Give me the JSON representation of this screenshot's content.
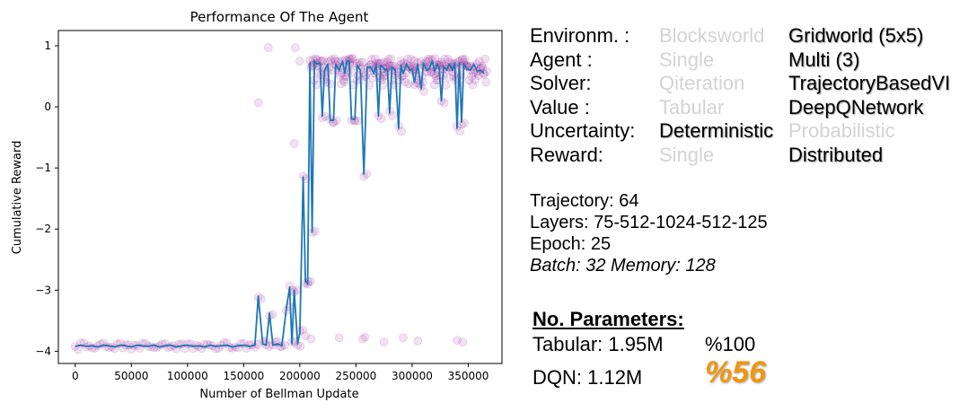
{
  "chart_data": {
    "type": "line",
    "title": "Performance Of The Agent",
    "xlabel": "Number of Bellman Update",
    "ylabel": "Cumulative Reward",
    "xlim": [
      -15000,
      380000
    ],
    "ylim": [
      -4.2,
      1.25
    ],
    "xticks": [
      0,
      50000,
      100000,
      150000,
      200000,
      250000,
      300000,
      350000
    ],
    "yticks": [
      1,
      0,
      -1,
      -2,
      -3,
      -4
    ],
    "line_color": "#1f77b4",
    "scatter_color": "#9b30a0",
    "grid": false,
    "series": [
      {
        "type": "line",
        "points": [
          [
            0,
            -3.92
          ],
          [
            5000,
            -3.9
          ],
          [
            10000,
            -3.92
          ],
          [
            15000,
            -3.91
          ],
          [
            20000,
            -3.93
          ],
          [
            25000,
            -3.9
          ],
          [
            30000,
            -3.91
          ],
          [
            35000,
            -3.93
          ],
          [
            40000,
            -3.9
          ],
          [
            45000,
            -3.91
          ],
          [
            50000,
            -3.93
          ],
          [
            55000,
            -3.9
          ],
          [
            60000,
            -3.91
          ],
          [
            65000,
            -3.92
          ],
          [
            70000,
            -3.9
          ],
          [
            75000,
            -3.93
          ],
          [
            80000,
            -3.91
          ],
          [
            85000,
            -3.9
          ],
          [
            90000,
            -3.93
          ],
          [
            95000,
            -3.91
          ],
          [
            100000,
            -3.9
          ],
          [
            105000,
            -3.92
          ],
          [
            110000,
            -3.91
          ],
          [
            115000,
            -3.93
          ],
          [
            120000,
            -3.9
          ],
          [
            125000,
            -3.92
          ],
          [
            130000,
            -3.91
          ],
          [
            135000,
            -3.9
          ],
          [
            140000,
            -3.93
          ],
          [
            145000,
            -3.91
          ],
          [
            150000,
            -3.9
          ],
          [
            155000,
            -3.92
          ],
          [
            160000,
            -3.9
          ],
          [
            163000,
            -3.1
          ],
          [
            167000,
            -3.88
          ],
          [
            170000,
            -3.9
          ],
          [
            173000,
            -3.38
          ],
          [
            176000,
            -3.9
          ],
          [
            180000,
            -3.88
          ],
          [
            184000,
            -3.91
          ],
          [
            188000,
            -3.3
          ],
          [
            191000,
            -2.95
          ],
          [
            193000,
            -3.88
          ],
          [
            195000,
            -3.0
          ],
          [
            198000,
            -3.88
          ],
          [
            200000,
            -3.7
          ],
          [
            203000,
            -1.15
          ],
          [
            205000,
            -2.85
          ],
          [
            207000,
            -2.9
          ],
          [
            209000,
            0.72
          ],
          [
            211000,
            -2.05
          ],
          [
            213000,
            0.75
          ],
          [
            215000,
            0.7
          ],
          [
            218000,
            0.72
          ],
          [
            220000,
            -0.15
          ],
          [
            222000,
            0.6
          ],
          [
            225000,
            0.7
          ],
          [
            227000,
            -0.22
          ],
          [
            230000,
            -0.22
          ],
          [
            232000,
            0.7
          ],
          [
            235000,
            0.6
          ],
          [
            238000,
            0.75
          ],
          [
            240000,
            0.55
          ],
          [
            242000,
            0.75
          ],
          [
            244000,
            0.75
          ],
          [
            246000,
            -0.2
          ],
          [
            249000,
            -0.2
          ],
          [
            251000,
            0.68
          ],
          [
            254000,
            0.6
          ],
          [
            257000,
            -1.1
          ],
          [
            260000,
            0.65
          ],
          [
            263000,
            0.65
          ],
          [
            266000,
            0.55
          ],
          [
            268000,
            0.7
          ],
          [
            270000,
            -0.15
          ],
          [
            272000,
            0.68
          ],
          [
            274000,
            0.65
          ],
          [
            276000,
            0.6
          ],
          [
            278000,
            0.62
          ],
          [
            280000,
            -0.1
          ],
          [
            282000,
            0.65
          ],
          [
            285000,
            0.6
          ],
          [
            288000,
            -0.35
          ],
          [
            290000,
            0.68
          ],
          [
            292000,
            0.55
          ],
          [
            295000,
            0.7
          ],
          [
            298000,
            0.6
          ],
          [
            300000,
            0.62
          ],
          [
            302000,
            0.4
          ],
          [
            305000,
            0.7
          ],
          [
            308000,
            0.3
          ],
          [
            310000,
            0.72
          ],
          [
            313000,
            0.6
          ],
          [
            315000,
            0.62
          ],
          [
            318000,
            0.75
          ],
          [
            320000,
            0.58
          ],
          [
            322000,
            0.7
          ],
          [
            324000,
            0.65
          ],
          [
            326000,
            0.1
          ],
          [
            328000,
            0.66
          ],
          [
            331000,
            0.6
          ],
          [
            333000,
            0.7
          ],
          [
            336000,
            0.6
          ],
          [
            338000,
            0.72
          ],
          [
            340000,
            -0.35
          ],
          [
            342000,
            0.72
          ],
          [
            344000,
            -0.25
          ],
          [
            346000,
            0.7
          ],
          [
            349000,
            0.62
          ],
          [
            352000,
            0.6
          ],
          [
            355000,
            0.7
          ],
          [
            358000,
            0.58
          ],
          [
            361000,
            0.6
          ],
          [
            364000,
            0.55
          ]
        ]
      },
      {
        "type": "scatter",
        "outliers": [
          [
            163000,
            0.07
          ],
          [
            172000,
            0.97
          ],
          [
            195000,
            -0.6
          ],
          [
            196000,
            0.97
          ],
          [
            200000,
            0.75
          ],
          [
            205000,
            -3.75
          ],
          [
            210000,
            -3.8
          ],
          [
            235000,
            -3.78
          ],
          [
            256000,
            -3.8
          ],
          [
            258000,
            -3.77
          ],
          [
            275000,
            -3.85
          ],
          [
            292000,
            -3.78
          ],
          [
            305000,
            -3.83
          ],
          [
            340000,
            -3.82
          ],
          [
            345000,
            -3.85
          ]
        ]
      }
    ]
  },
  "config": {
    "rows": [
      {
        "label": "Environm. :",
        "options": [
          "Blocksworld",
          "Gridworld (5x5)"
        ],
        "selected": 1
      },
      {
        "label": "Agent :",
        "options": [
          "Single",
          "Multi (3)"
        ],
        "selected": 1
      },
      {
        "label": "Solver:",
        "options": [
          "Qiteration",
          "TrajectoryBasedVI"
        ],
        "selected": 1
      },
      {
        "label": "Value :",
        "options": [
          "Tabular",
          "DeepQNetwork"
        ],
        "selected": 1
      },
      {
        "label": "Uncertainty:",
        "options": [
          "Deterministic",
          "Probabilistic"
        ],
        "selected": 0
      },
      {
        "label": "Reward:",
        "options": [
          "Single",
          "Distributed"
        ],
        "selected": 1
      }
    ],
    "selected_color": "#000000",
    "unselected_color": "#d3d3d3"
  },
  "info": {
    "trajectory": "Trajectory: 64",
    "layers": "Layers: 75-512-1024-512-125",
    "epoch": "Epoch: 25",
    "batch_memory": "Batch: 32 Memory: 128"
  },
  "parameters": {
    "heading": "No. Parameters:",
    "tabular": "Tabular: 1.95M",
    "tabular_pct": "%100",
    "dqn": "DQN: 1.12M",
    "dqn_pct": "%56",
    "highlight_color": "#f0960f"
  }
}
